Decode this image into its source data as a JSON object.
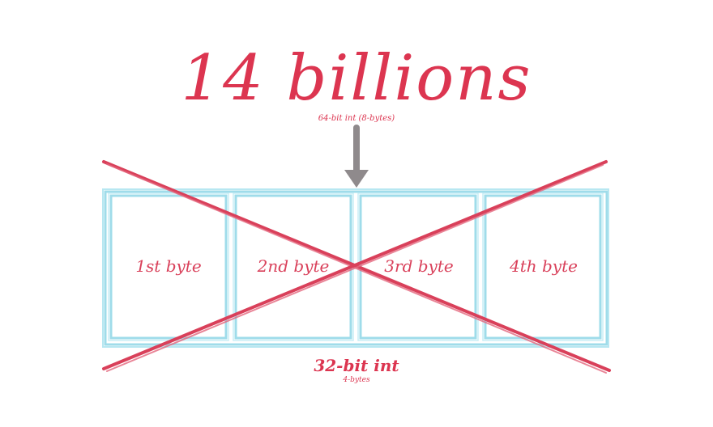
{
  "title": "14 billions",
  "subtitle": "64-bit int (8-bytes)",
  "bytes": [
    "1st byte",
    "2nd byte",
    "3rd byte",
    "4th byte"
  ],
  "container_label": "32-bit int",
  "container_sublabel": "4-bytes",
  "colors": {
    "text": "#dc3550",
    "box": "#9fdcea",
    "cross": "#d9405a",
    "arrow": "#8f8a8c"
  }
}
